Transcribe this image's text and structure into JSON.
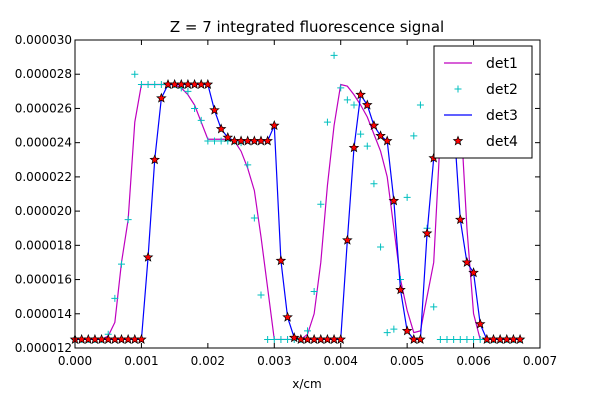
{
  "chart_data": {
    "type": "line",
    "title": "Z = 7 integrated fluorescence signal",
    "xlabel": "x/cm",
    "ylabel": "",
    "xlim": [
      0.0,
      0.007
    ],
    "ylim": [
      1.2e-05,
      3e-05
    ],
    "x_ticks": [
      "0.000",
      "0.001",
      "0.002",
      "0.003",
      "0.004",
      "0.005",
      "0.006",
      "0.007"
    ],
    "y_ticks": [
      "0.000012",
      "0.000014",
      "0.000016",
      "0.000018",
      "0.000020",
      "0.000022",
      "0.000024",
      "0.000026",
      "0.000028",
      "0.000030"
    ],
    "grid": false,
    "legend_position": "top-right",
    "series": [
      {
        "name": "det1",
        "style": "line",
        "color": "#bf00bf",
        "x": [
          0.0,
          0.0001,
          0.0002,
          0.0003,
          0.0004,
          0.0005,
          0.0006,
          0.0007,
          0.0008,
          0.0009,
          0.001,
          0.0011,
          0.0012,
          0.0013,
          0.0014,
          0.0015,
          0.0016,
          0.0017,
          0.0018,
          0.0019,
          0.002,
          0.0021,
          0.0022,
          0.0023,
          0.0024,
          0.0025,
          0.0026,
          0.0027,
          0.0028,
          0.0029,
          0.003,
          0.0031,
          0.0032,
          0.0033,
          0.0034,
          0.0035,
          0.0036,
          0.0037,
          0.0038,
          0.0039,
          0.004,
          0.0041,
          0.0042,
          0.0043,
          0.0044,
          0.0045,
          0.0046,
          0.0047,
          0.0048,
          0.0049,
          0.005,
          0.0051,
          0.0052,
          0.0053,
          0.0054,
          0.0055,
          0.0056,
          0.0057,
          0.0058,
          0.0059,
          0.006,
          0.0061,
          0.0062,
          0.0063,
          0.0064,
          0.0065,
          0.0066,
          0.0067
        ],
        "y": [
          1.25e-05,
          1.25e-05,
          1.25e-05,
          1.25e-05,
          1.25e-05,
          1.27e-05,
          1.35e-05,
          1.7e-05,
          1.95e-05,
          2.52e-05,
          2.74e-05,
          2.74e-05,
          2.74e-05,
          2.74e-05,
          2.74e-05,
          2.74e-05,
          2.72e-05,
          2.68e-05,
          2.62e-05,
          2.52e-05,
          2.42e-05,
          2.42e-05,
          2.42e-05,
          2.42e-05,
          2.41e-05,
          2.35e-05,
          2.25e-05,
          2.12e-05,
          1.85e-05,
          1.55e-05,
          1.25e-05,
          1.25e-05,
          1.25e-05,
          1.25e-05,
          1.25e-05,
          1.28e-05,
          1.4e-05,
          1.7e-05,
          2.15e-05,
          2.5e-05,
          2.74e-05,
          2.73e-05,
          2.68e-05,
          2.62e-05,
          2.55e-05,
          2.45e-05,
          2.35e-05,
          2.2e-05,
          1.9e-05,
          1.6e-05,
          1.42e-05,
          1.29e-05,
          1.3e-05,
          1.5e-05,
          1.7e-05,
          2.45e-05,
          2.75e-05,
          2.75e-05,
          2.6e-05,
          1.9e-05,
          1.4e-05,
          1.25e-05,
          1.25e-05,
          1.25e-05,
          1.25e-05,
          1.25e-05,
          1.25e-05,
          1.25e-05
        ]
      },
      {
        "name": "det2",
        "style": "plus",
        "color": "#00bfbf",
        "x": [
          0.0,
          0.0001,
          0.0002,
          0.0003,
          0.0004,
          0.0005,
          0.0006,
          0.0007,
          0.0008,
          0.0009,
          0.001,
          0.0011,
          0.0012,
          0.0013,
          0.0014,
          0.0015,
          0.0016,
          0.0017,
          0.0018,
          0.0019,
          0.002,
          0.0021,
          0.0022,
          0.0023,
          0.0024,
          0.0025,
          0.0026,
          0.0027,
          0.0028,
          0.0029,
          0.003,
          0.0031,
          0.0032,
          0.0033,
          0.0034,
          0.0035,
          0.0036,
          0.0037,
          0.0038,
          0.0039,
          0.004,
          0.0041,
          0.0042,
          0.0043,
          0.0044,
          0.0045,
          0.0046,
          0.0047,
          0.0048,
          0.0049,
          0.005,
          0.0051,
          0.0052,
          0.0053,
          0.0054,
          0.0055,
          0.0056,
          0.0057,
          0.0058,
          0.0059,
          0.006,
          0.0061,
          0.0062,
          0.0063,
          0.0064,
          0.0065,
          0.0066,
          0.0067
        ],
        "y": [
          1.25e-05,
          1.25e-05,
          1.25e-05,
          1.25e-05,
          1.25e-05,
          1.28e-05,
          1.49e-05,
          1.69e-05,
          1.95e-05,
          2.8e-05,
          2.74e-05,
          2.74e-05,
          2.74e-05,
          2.74e-05,
          2.74e-05,
          2.74e-05,
          2.72e-05,
          2.7e-05,
          2.6e-05,
          2.53e-05,
          2.41e-05,
          2.41e-05,
          2.41e-05,
          2.41e-05,
          2.41e-05,
          2.4e-05,
          2.27e-05,
          1.96e-05,
          1.51e-05,
          1.25e-05,
          1.25e-05,
          1.25e-05,
          1.25e-05,
          1.25e-05,
          1.25e-05,
          1.3e-05,
          1.53e-05,
          2.04e-05,
          2.52e-05,
          2.91e-05,
          2.72e-05,
          2.65e-05,
          2.62e-05,
          2.45e-05,
          2.38e-05,
          2.16e-05,
          1.79e-05,
          1.29e-05,
          1.31e-05,
          1.6e-05,
          2.08e-05,
          2.44e-05,
          2.62e-05,
          1.9e-05,
          1.44e-05,
          1.25e-05,
          1.25e-05,
          1.25e-05,
          1.25e-05,
          1.25e-05,
          1.25e-05,
          1.25e-05,
          1.25e-05,
          1.25e-05,
          1.25e-05,
          1.25e-05,
          1.25e-05,
          1.25e-05
        ]
      },
      {
        "name": "det3",
        "style": "line",
        "color": "#0000ff",
        "x": [
          0.0,
          0.0001,
          0.0002,
          0.0003,
          0.0004,
          0.0005,
          0.0006,
          0.0007,
          0.0008,
          0.0009,
          0.001,
          0.0011,
          0.0012,
          0.0013,
          0.0014,
          0.0015,
          0.0016,
          0.0017,
          0.0018,
          0.0019,
          0.002,
          0.0021,
          0.0022,
          0.0023,
          0.0024,
          0.0025,
          0.0026,
          0.0027,
          0.0028,
          0.0029,
          0.003,
          0.0031,
          0.0032,
          0.0033,
          0.0034,
          0.0035,
          0.0036,
          0.0037,
          0.0038,
          0.0039,
          0.004,
          0.0041,
          0.0042,
          0.0043,
          0.0044,
          0.0045,
          0.0046,
          0.0047,
          0.0048,
          0.0049,
          0.005,
          0.0051,
          0.0052,
          0.0053,
          0.0054,
          0.0055,
          0.0056,
          0.0057,
          0.0058,
          0.0059,
          0.006,
          0.0061,
          0.0062,
          0.0063,
          0.0064,
          0.0065,
          0.0066,
          0.0067
        ],
        "y": [
          1.25e-05,
          1.25e-05,
          1.25e-05,
          1.25e-05,
          1.25e-05,
          1.25e-05,
          1.25e-05,
          1.25e-05,
          1.25e-05,
          1.25e-05,
          1.25e-05,
          1.73e-05,
          2.3e-05,
          2.66e-05,
          2.74e-05,
          2.74e-05,
          2.74e-05,
          2.74e-05,
          2.74e-05,
          2.74e-05,
          2.74e-05,
          2.59e-05,
          2.48e-05,
          2.43e-05,
          2.41e-05,
          2.41e-05,
          2.41e-05,
          2.41e-05,
          2.41e-05,
          2.41e-05,
          2.5e-05,
          1.71e-05,
          1.38e-05,
          1.26e-05,
          1.25e-05,
          1.25e-05,
          1.25e-05,
          1.25e-05,
          1.25e-05,
          1.25e-05,
          1.25e-05,
          1.83e-05,
          2.37e-05,
          2.68e-05,
          2.62e-05,
          2.5e-05,
          2.44e-05,
          2.41e-05,
          2.06e-05,
          1.54e-05,
          1.3e-05,
          1.25e-05,
          1.25e-05,
          1.87e-05,
          2.31e-05,
          2.62e-05,
          2.68e-05,
          2.53e-05,
          1.95e-05,
          1.7e-05,
          1.64e-05,
          1.34e-05,
          1.25e-05,
          1.25e-05,
          1.25e-05,
          1.25e-05,
          1.25e-05,
          1.25e-05
        ]
      },
      {
        "name": "det4",
        "style": "star",
        "color": "#ff0000",
        "x": [
          0.0,
          0.0001,
          0.0002,
          0.0003,
          0.0004,
          0.0005,
          0.0006,
          0.0007,
          0.0008,
          0.0009,
          0.001,
          0.0011,
          0.0012,
          0.0013,
          0.0014,
          0.0015,
          0.0016,
          0.0017,
          0.0018,
          0.0019,
          0.002,
          0.0021,
          0.0022,
          0.0023,
          0.0024,
          0.0025,
          0.0026,
          0.0027,
          0.0028,
          0.0029,
          0.003,
          0.0031,
          0.0032,
          0.0033,
          0.0034,
          0.0035,
          0.0036,
          0.0037,
          0.0038,
          0.0039,
          0.004,
          0.0041,
          0.0042,
          0.0043,
          0.0044,
          0.0045,
          0.0046,
          0.0047,
          0.0048,
          0.0049,
          0.005,
          0.0051,
          0.0052,
          0.0053,
          0.0054,
          0.0055,
          0.0056,
          0.0057,
          0.0058,
          0.0059,
          0.006,
          0.0061,
          0.0062,
          0.0063,
          0.0064,
          0.0065,
          0.0066,
          0.0067
        ],
        "y": [
          1.25e-05,
          1.25e-05,
          1.25e-05,
          1.25e-05,
          1.25e-05,
          1.25e-05,
          1.25e-05,
          1.25e-05,
          1.25e-05,
          1.25e-05,
          1.25e-05,
          1.73e-05,
          2.3e-05,
          2.66e-05,
          2.74e-05,
          2.74e-05,
          2.74e-05,
          2.74e-05,
          2.74e-05,
          2.74e-05,
          2.74e-05,
          2.59e-05,
          2.48e-05,
          2.43e-05,
          2.41e-05,
          2.41e-05,
          2.41e-05,
          2.41e-05,
          2.41e-05,
          2.41e-05,
          2.5e-05,
          1.71e-05,
          1.38e-05,
          1.26e-05,
          1.25e-05,
          1.25e-05,
          1.25e-05,
          1.25e-05,
          1.25e-05,
          1.25e-05,
          1.25e-05,
          1.83e-05,
          2.37e-05,
          2.68e-05,
          2.62e-05,
          2.5e-05,
          2.44e-05,
          2.41e-05,
          2.06e-05,
          1.54e-05,
          1.3e-05,
          1.25e-05,
          1.25e-05,
          1.87e-05,
          2.31e-05,
          2.62e-05,
          2.68e-05,
          2.53e-05,
          1.95e-05,
          1.7e-05,
          1.64e-05,
          1.34e-05,
          1.25e-05,
          1.25e-05,
          1.25e-05,
          1.25e-05,
          1.25e-05,
          1.25e-05
        ]
      }
    ]
  }
}
